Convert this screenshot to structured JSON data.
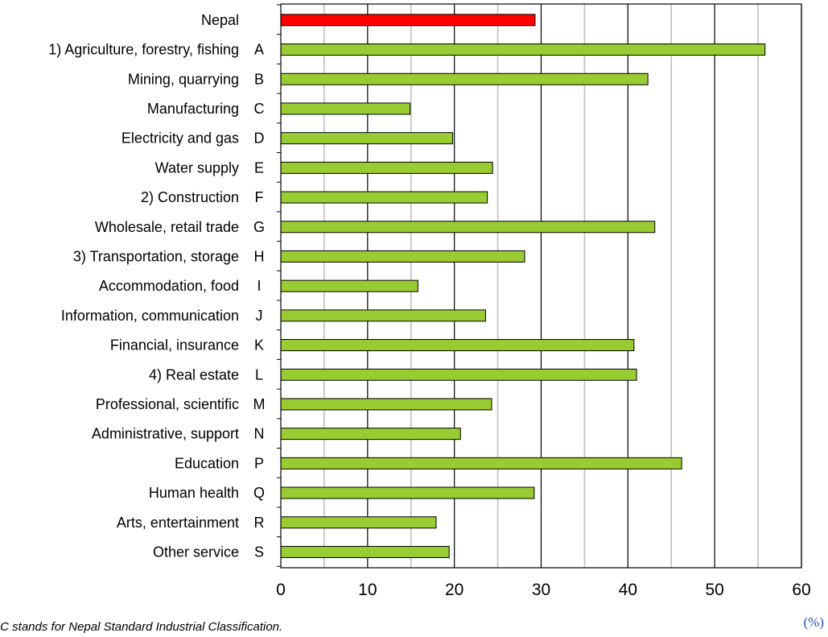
{
  "chart_data": {
    "type": "bar",
    "orientation": "horizontal",
    "categories": [
      {
        "label": "Nepal",
        "code": ""
      },
      {
        "label": "1) Agriculture, forestry, fishing",
        "code": "A"
      },
      {
        "label": "Mining, quarrying",
        "code": "B"
      },
      {
        "label": "Manufacturing",
        "code": "C"
      },
      {
        "label": "Electricity and gas",
        "code": "D"
      },
      {
        "label": "Water supply",
        "code": "E"
      },
      {
        "label": "2) Construction",
        "code": "F"
      },
      {
        "label": "Wholesale, retail trade",
        "code": "G"
      },
      {
        "label": "3) Transportation, storage",
        "code": "H"
      },
      {
        "label": "Accommodation, food",
        "code": "I"
      },
      {
        "label": "Information, communication",
        "code": "J"
      },
      {
        "label": "Financial, insurance",
        "code": "K"
      },
      {
        "label": "4) Real estate",
        "code": "L"
      },
      {
        "label": "Professional, scientific",
        "code": "M"
      },
      {
        "label": "Administrative, support",
        "code": "N"
      },
      {
        "label": "Education",
        "code": "P"
      },
      {
        "label": "Human health",
        "code": "Q"
      },
      {
        "label": "Arts, entertainment",
        "code": "R"
      },
      {
        "label": "Other service",
        "code": "S"
      }
    ],
    "values": [
      29.3,
      55.8,
      42.3,
      14.9,
      19.8,
      24.4,
      23.8,
      43.1,
      28.1,
      15.8,
      23.6,
      40.7,
      41.0,
      24.3,
      20.7,
      46.2,
      29.2,
      17.9,
      19.4
    ],
    "highlight_index": 0,
    "colors": {
      "highlight": "#ff0000",
      "bar": "#99cc33",
      "outline": "#000000",
      "grid": "#bfbfbf",
      "major_grid": "#000000"
    },
    "xlim": [
      0,
      60
    ],
    "x_ticks": [
      0,
      10,
      20,
      30,
      40,
      50,
      60
    ],
    "x_unit": "(%)",
    "grid": true,
    "note": "SIC stands for Nepal Standard Industrial Classification."
  }
}
